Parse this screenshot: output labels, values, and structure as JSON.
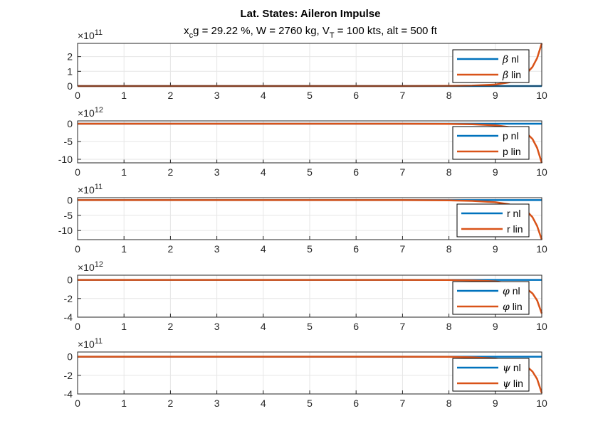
{
  "figure": {
    "title": "Lat. States: Aileron Impulse",
    "subtitle": "x_cg = 29.22 %, W = 2760 kg, V_T = 100 kts, alt = 500 ft",
    "subtitle_parts": {
      "x": "x",
      "x_sub": "c",
      "rest1": "g = 29.22 %, W = 2760 kg, V",
      "v_sub": "T",
      "rest2": " = 100 kts, alt = 500 ft"
    }
  },
  "colors": {
    "nl": "#0072BD",
    "lin": "#D95319",
    "grid": "#E6E6E6",
    "axis": "#262626"
  },
  "chart_data": [
    {
      "type": "line",
      "exponent_base": "10",
      "exponent": "11",
      "x": [
        0,
        10
      ],
      "xticks": [
        "0",
        "1",
        "2",
        "3",
        "4",
        "5",
        "6",
        "7",
        "8",
        "9",
        "10"
      ],
      "xlim": [
        0,
        10
      ],
      "ylim": [
        0,
        2.9
      ],
      "yticks": [
        0,
        1,
        2
      ],
      "ytick_labels": [
        "0",
        "1",
        "2"
      ],
      "legend": "top-right",
      "series": [
        {
          "name": "β nl",
          "symbol": "β",
          "label": "nl",
          "points": [
            [
              0,
              0
            ],
            [
              10,
              0
            ]
          ]
        },
        {
          "name": "β lin",
          "symbol": "β",
          "label": "lin",
          "points": [
            [
              0,
              0
            ],
            [
              7,
              0
            ],
            [
              8,
              0.01
            ],
            [
              8.5,
              0.03
            ],
            [
              9,
              0.1
            ],
            [
              9.3,
              0.25
            ],
            [
              9.5,
              0.5
            ],
            [
              9.7,
              0.95
            ],
            [
              9.8,
              1.3
            ],
            [
              9.9,
              1.9
            ],
            [
              10,
              2.9
            ]
          ]
        }
      ]
    },
    {
      "type": "line",
      "exponent_base": "10",
      "exponent": "12",
      "x": [
        0,
        10
      ],
      "xticks": [
        "0",
        "1",
        "2",
        "3",
        "4",
        "5",
        "6",
        "7",
        "8",
        "9",
        "10"
      ],
      "xlim": [
        0,
        10
      ],
      "ylim": [
        -11,
        0.8
      ],
      "yticks": [
        0,
        -5,
        -10
      ],
      "ytick_labels": [
        "0",
        "-5",
        "-10"
      ],
      "legend": "bottom-right",
      "series": [
        {
          "name": "p nl",
          "symbol": "",
          "label": "p nl",
          "points": [
            [
              0,
              0
            ],
            [
              10,
              0
            ]
          ]
        },
        {
          "name": "p lin",
          "symbol": "",
          "label": "p lin",
          "points": [
            [
              0,
              0
            ],
            [
              7,
              0
            ],
            [
              8,
              -0.05
            ],
            [
              8.5,
              -0.15
            ],
            [
              9,
              -0.45
            ],
            [
              9.3,
              -0.95
            ],
            [
              9.5,
              -1.6
            ],
            [
              9.7,
              -3.0
            ],
            [
              9.8,
              -4.3
            ],
            [
              9.9,
              -6.8
            ],
            [
              10,
              -11
            ]
          ]
        }
      ]
    },
    {
      "type": "line",
      "exponent_base": "10",
      "exponent": "11",
      "x": [
        0,
        10
      ],
      "xticks": [
        "0",
        "1",
        "2",
        "3",
        "4",
        "5",
        "6",
        "7",
        "8",
        "9",
        "10"
      ],
      "xlim": [
        0,
        10
      ],
      "ylim": [
        -13,
        0.8
      ],
      "yticks": [
        0,
        -5,
        -10
      ],
      "ytick_labels": [
        "0",
        "-5",
        "-10"
      ],
      "legend": "bottom-right",
      "series": [
        {
          "name": "r nl",
          "symbol": "",
          "label": "r nl",
          "points": [
            [
              0,
              0
            ],
            [
              10,
              0
            ]
          ]
        },
        {
          "name": "r lin",
          "symbol": "",
          "label": "r lin",
          "points": [
            [
              0,
              0
            ],
            [
              7,
              0
            ],
            [
              8,
              -0.1
            ],
            [
              8.5,
              -0.25
            ],
            [
              9,
              -0.7
            ],
            [
              9.3,
              -1.4
            ],
            [
              9.5,
              -2.3
            ],
            [
              9.7,
              -4.0
            ],
            [
              9.8,
              -5.6
            ],
            [
              9.9,
              -8.5
            ],
            [
              10,
              -13
            ]
          ]
        }
      ]
    },
    {
      "type": "line",
      "exponent_base": "10",
      "exponent": "12",
      "x": [
        0,
        10
      ],
      "xticks": [
        "0",
        "1",
        "2",
        "3",
        "4",
        "5",
        "6",
        "7",
        "8",
        "9",
        "10"
      ],
      "xlim": [
        0,
        10
      ],
      "ylim": [
        -4,
        0.5
      ],
      "yticks": [
        0,
        -2,
        -4
      ],
      "ytick_labels": [
        "0",
        "-2",
        "-4"
      ],
      "legend": "bottom-right",
      "series": [
        {
          "name": "φ nl",
          "symbol": "φ",
          "label": "nl",
          "points": [
            [
              0,
              0
            ],
            [
              10,
              0
            ]
          ]
        },
        {
          "name": "φ lin",
          "symbol": "φ",
          "label": "lin",
          "points": [
            [
              0,
              0
            ],
            [
              7,
              0
            ],
            [
              8,
              -0.02
            ],
            [
              8.5,
              -0.06
            ],
            [
              9,
              -0.17
            ],
            [
              9.3,
              -0.35
            ],
            [
              9.5,
              -0.58
            ],
            [
              9.7,
              -1.05
            ],
            [
              9.8,
              -1.45
            ],
            [
              9.9,
              -2.2
            ],
            [
              10,
              -3.6
            ]
          ]
        }
      ]
    },
    {
      "type": "line",
      "exponent_base": "10",
      "exponent": "11",
      "x": [
        0,
        10
      ],
      "xticks": [
        "0",
        "1",
        "2",
        "3",
        "4",
        "5",
        "6",
        "7",
        "8",
        "9",
        "10"
      ],
      "xlim": [
        0,
        10
      ],
      "ylim": [
        -4,
        0.5
      ],
      "yticks": [
        0,
        -2,
        -4
      ],
      "ytick_labels": [
        "0",
        "-2",
        "-4"
      ],
      "legend": "bottom-right",
      "series": [
        {
          "name": "ψ nl",
          "symbol": "ψ",
          "label": "nl",
          "points": [
            [
              0,
              0
            ],
            [
              10,
              0
            ]
          ]
        },
        {
          "name": "ψ lin",
          "symbol": "ψ",
          "label": "lin",
          "points": [
            [
              0,
              0
            ],
            [
              7,
              0
            ],
            [
              8,
              -0.02
            ],
            [
              8.5,
              -0.07
            ],
            [
              9,
              -0.2
            ],
            [
              9.3,
              -0.4
            ],
            [
              9.5,
              -0.65
            ],
            [
              9.7,
              -1.15
            ],
            [
              9.8,
              -1.6
            ],
            [
              9.9,
              -2.4
            ],
            [
              10,
              -3.9
            ]
          ]
        }
      ]
    }
  ]
}
